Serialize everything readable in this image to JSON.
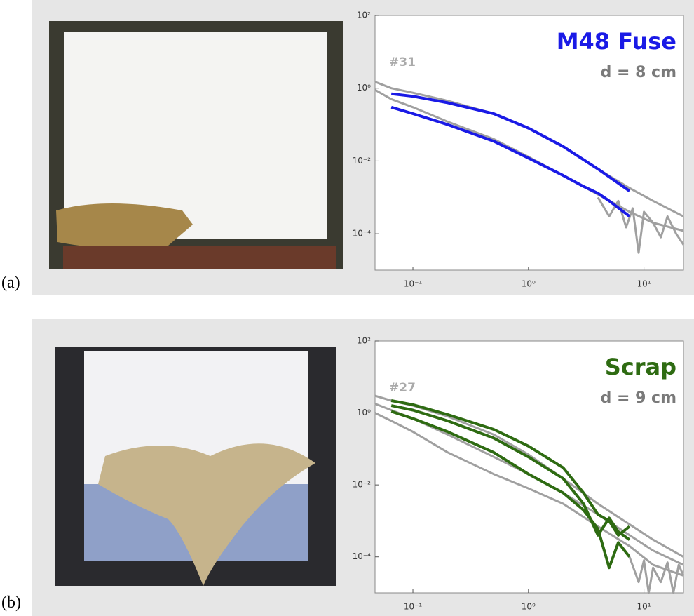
{
  "chart_data": [
    {
      "type": "line",
      "label": "(a)",
      "title": "M48 Fuse",
      "subtitle": "d = 8 cm",
      "annotation": "#31",
      "title_color": "#1a1ae6",
      "xscale": "log",
      "yscale": "log",
      "xlim": [
        0.047,
        22
      ],
      "ylim": [
        1e-05,
        100
      ],
      "xticks": [
        {
          "value": 0.1,
          "label": "10⁻¹"
        },
        {
          "value": 1,
          "label": "10⁰"
        },
        {
          "value": 10,
          "label": "10¹"
        }
      ],
      "yticks": [
        {
          "value": 0.0001,
          "label": "10⁻⁴"
        },
        {
          "value": 0.01,
          "label": "10⁻²"
        },
        {
          "value": 1,
          "label": "10⁰"
        },
        {
          "value": 100,
          "label": "10²"
        }
      ],
      "series": [
        {
          "color": "#a0a0a0",
          "x": [
            0.047,
            0.065,
            0.1,
            0.2,
            0.5,
            1,
            2,
            4,
            7.5,
            12,
            22
          ],
          "values": [
            1.5,
            1.0,
            0.75,
            0.45,
            0.2,
            0.08,
            0.025,
            0.006,
            0.0018,
            0.0008,
            0.0003
          ]
        },
        {
          "color": "#a0a0a0",
          "x": [
            0.047,
            0.065,
            0.1,
            0.2,
            0.5,
            1,
            2,
            4,
            7.5,
            12,
            22
          ],
          "values": [
            0.9,
            0.5,
            0.3,
            0.12,
            0.04,
            0.013,
            0.004,
            0.0012,
            0.0004,
            0.0002,
            0.00012
          ]
        },
        {
          "color": "#a0a0a0",
          "x": [
            4,
            5,
            6,
            7,
            8,
            9,
            10,
            12,
            14,
            16,
            19,
            22
          ],
          "values": [
            0.001,
            0.0003,
            0.0008,
            0.00015,
            0.0005,
            3e-05,
            0.0004,
            0.0002,
            8e-05,
            0.0003,
            0.0001,
            5e-05
          ]
        },
        {
          "color": "#1a1ae6",
          "x": [
            0.065,
            0.1,
            0.2,
            0.5,
            1,
            2,
            4,
            7.5
          ],
          "values": [
            0.7,
            0.6,
            0.4,
            0.2,
            0.08,
            0.025,
            0.006,
            0.0015
          ]
        },
        {
          "color": "#1a1ae6",
          "x": [
            0.065,
            0.1,
            0.2,
            0.5,
            1,
            2,
            3,
            4,
            5,
            7.5
          ],
          "values": [
            0.3,
            0.2,
            0.1,
            0.035,
            0.012,
            0.004,
            0.002,
            0.0013,
            0.0008,
            0.0003
          ]
        }
      ]
    },
    {
      "type": "line",
      "label": "(b)",
      "title": "Scrap",
      "subtitle": "d = 9 cm",
      "annotation": "#27",
      "title_color": "#2e6b12",
      "xscale": "log",
      "yscale": "log",
      "xlim": [
        0.047,
        22
      ],
      "ylim": [
        1e-05,
        100
      ],
      "xticks": [
        {
          "value": 0.1,
          "label": "10⁻¹"
        },
        {
          "value": 1,
          "label": "10⁰"
        },
        {
          "value": 10,
          "label": "10¹"
        }
      ],
      "yticks": [
        {
          "value": 0.0001,
          "label": "10⁻⁴"
        },
        {
          "value": 0.01,
          "label": "10⁻²"
        },
        {
          "value": 1,
          "label": "10⁰"
        },
        {
          "value": 100,
          "label": "10²"
        }
      ],
      "series": [
        {
          "color": "#a0a0a0",
          "x": [
            0.047,
            0.065,
            0.1,
            0.2,
            0.5,
            1,
            2,
            4,
            7.5,
            12,
            22
          ],
          "values": [
            3,
            2.2,
            1.6,
            0.8,
            0.25,
            0.07,
            0.015,
            0.003,
            0.0008,
            0.0003,
            0.0001
          ]
        },
        {
          "color": "#a0a0a0",
          "x": [
            0.047,
            0.065,
            0.1,
            0.2,
            0.5,
            1,
            2,
            4,
            7.5,
            12,
            22
          ],
          "values": [
            1.8,
            1.2,
            0.7,
            0.25,
            0.06,
            0.02,
            0.006,
            0.0015,
            0.0004,
            0.00015,
            6e-05
          ]
        },
        {
          "color": "#a0a0a0",
          "x": [
            0.047,
            0.065,
            0.1,
            0.2,
            0.5,
            1,
            2,
            4,
            7.5,
            12,
            22
          ],
          "values": [
            1.0,
            0.6,
            0.3,
            0.08,
            0.02,
            0.008,
            0.003,
            0.0007,
            0.0002,
            6e-05,
            3e-05
          ]
        },
        {
          "color": "#a0a0a0",
          "x": [
            7.5,
            9,
            10,
            11,
            12,
            14,
            16,
            18,
            20,
            22
          ],
          "values": [
            0.0001,
            2e-05,
            8e-05,
            1e-05,
            5e-05,
            2e-05,
            7e-05,
            1e-05,
            6e-05,
            3e-05
          ]
        },
        {
          "color": "#2e6b12",
          "x": [
            0.065,
            0.1,
            0.2,
            0.5,
            1,
            2,
            3,
            4,
            5,
            6,
            7.5
          ],
          "values": [
            2.2,
            1.7,
            0.9,
            0.35,
            0.12,
            0.03,
            0.006,
            0.0015,
            0.001,
            0.0004,
            0.0007
          ]
        },
        {
          "color": "#2e6b12",
          "x": [
            0.065,
            0.1,
            0.2,
            0.5,
            1,
            2,
            3,
            4,
            5,
            6,
            7.5
          ],
          "values": [
            1.6,
            1.2,
            0.6,
            0.2,
            0.06,
            0.015,
            0.003,
            0.0004,
            0.0012,
            0.0005,
            0.0003
          ]
        },
        {
          "color": "#2e6b12",
          "x": [
            0.065,
            0.1,
            0.2,
            0.5,
            1,
            2,
            3,
            4,
            5,
            6,
            7.5
          ],
          "values": [
            1.1,
            0.7,
            0.3,
            0.08,
            0.02,
            0.006,
            0.002,
            0.0006,
            5e-05,
            0.00025,
            0.0001
          ]
        }
      ]
    }
  ]
}
